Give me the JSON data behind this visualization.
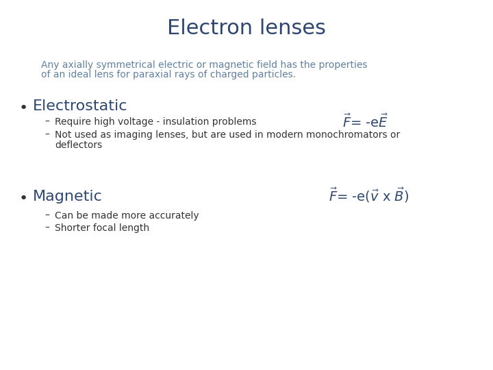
{
  "title": "Electron lenses",
  "title_color": "#2E4770",
  "title_fontsize": 22,
  "title_bold": false,
  "subtitle_line1": "Any axially symmetrical electric or magnetic field has the properties",
  "subtitle_line2": "of an ideal lens for paraxial rays of charged particles.",
  "subtitle_color": "#6080A0",
  "subtitle_fontsize": 10,
  "background_color": "#FFFFFF",
  "bullet1_header": "Electrostatic",
  "bullet1_sub1": "Require high voltage - insulation problems",
  "bullet1_sub2a": "Not used as imaging lenses, but are used in modern monochromators or",
  "bullet1_sub2b": "deflectors",
  "bullet2_header": "Magnetic",
  "bullet2_sub1": "Can be made more accurately",
  "bullet2_sub2": "Shorter focal length",
  "formula_color": "#2E4770",
  "formula_fontsize": 14,
  "text_color": "#333333",
  "header_color": "#2E4770",
  "header_fontsize": 16,
  "sub_fontsize": 10,
  "bullet_fontsize": 16
}
